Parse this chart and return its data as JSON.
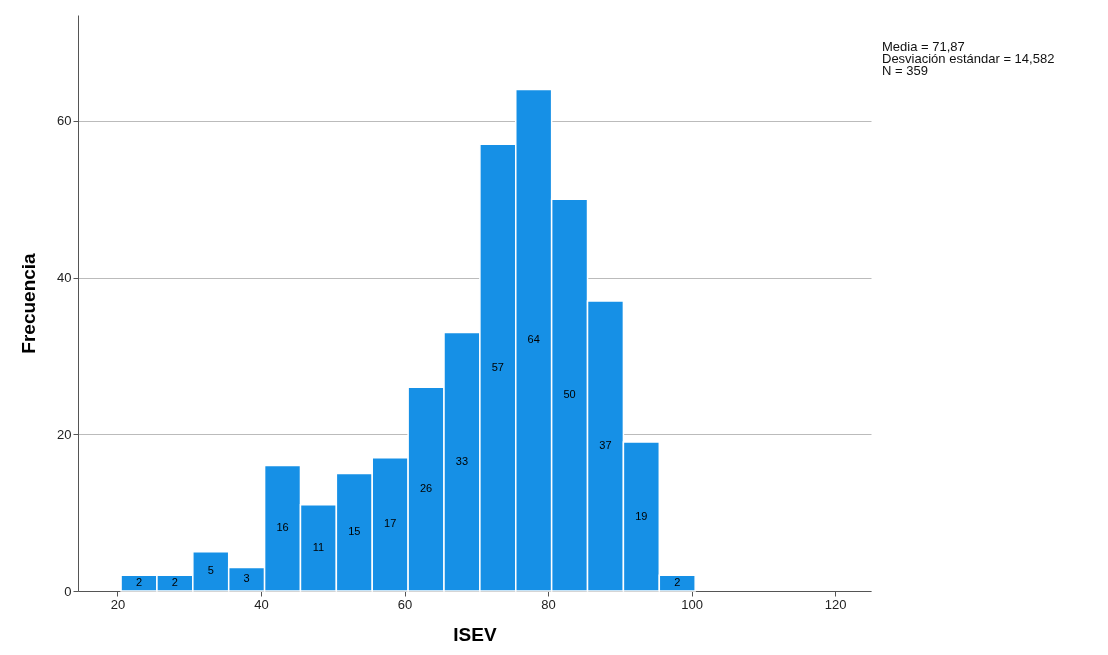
{
  "chart_data": {
    "type": "histogram",
    "xlabel": "ISEV",
    "ylabel": "Frecuencia",
    "bins": [
      20.5,
      25.5,
      30.5,
      35.5,
      40.5,
      45.5,
      50.5,
      55.5,
      60.5,
      65.5,
      70.5,
      75.5,
      80.5,
      85.5,
      90.5,
      95.5,
      100.5
    ],
    "values": [
      2,
      2,
      5,
      3,
      16,
      11,
      15,
      17,
      26,
      33,
      57,
      64,
      50,
      37,
      19,
      2
    ],
    "color": "#1690e6",
    "xlim": [
      14.5,
      125
    ],
    "xticks": [
      20,
      40,
      60,
      80,
      100,
      120
    ],
    "ylim": [
      0,
      73.5
    ],
    "yticks": [
      0,
      20,
      40,
      60
    ],
    "grid": "y",
    "data_labels": true,
    "annotations": [
      "Media = 71,87",
      "Desviación estándar = 14,582",
      "N = 359"
    ]
  }
}
